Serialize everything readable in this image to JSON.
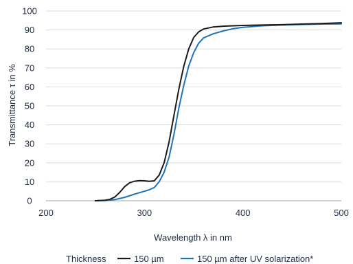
{
  "chart_data": {
    "type": "line",
    "xlabel": "Wavelength λ in nm",
    "ylabel": "Transmittance τ in %",
    "xlim": [
      200,
      500
    ],
    "ylim": [
      0,
      100
    ],
    "x_ticks": [
      200,
      300,
      400,
      500
    ],
    "y_ticks": [
      0,
      10,
      20,
      30,
      40,
      50,
      60,
      70,
      80,
      90,
      100
    ],
    "grid": {
      "horizontal": true,
      "vertical": false
    },
    "legend": {
      "position": "bottom",
      "title": "Thickness"
    },
    "series": [
      {
        "name": "150 µm",
        "color": "#1a1a1a",
        "points": [
          [
            250,
            0
          ],
          [
            260,
            0.3
          ],
          [
            265,
            0.8
          ],
          [
            270,
            2
          ],
          [
            275,
            4.5
          ],
          [
            280,
            7.5
          ],
          [
            285,
            9.5
          ],
          [
            290,
            10.3
          ],
          [
            295,
            10.6
          ],
          [
            300,
            10.5
          ],
          [
            305,
            10.2
          ],
          [
            310,
            10.5
          ],
          [
            315,
            13.5
          ],
          [
            320,
            20
          ],
          [
            325,
            31
          ],
          [
            330,
            45
          ],
          [
            335,
            59
          ],
          [
            340,
            71
          ],
          [
            345,
            80
          ],
          [
            350,
            86
          ],
          [
            355,
            89
          ],
          [
            360,
            90.5
          ],
          [
            370,
            91.6
          ],
          [
            380,
            92
          ],
          [
            390,
            92.2
          ],
          [
            400,
            92.4
          ],
          [
            420,
            92.6
          ],
          [
            440,
            92.8
          ],
          [
            460,
            93.1
          ],
          [
            480,
            93.4
          ],
          [
            500,
            93.8
          ]
        ]
      },
      {
        "name": "150 µm after UV solarization*",
        "color": "#1e73b8",
        "points": [
          [
            250,
            0
          ],
          [
            260,
            0.1
          ],
          [
            270,
            0.6
          ],
          [
            280,
            1.8
          ],
          [
            290,
            3.5
          ],
          [
            300,
            5.0
          ],
          [
            305,
            5.8
          ],
          [
            310,
            7.0
          ],
          [
            315,
            10
          ],
          [
            320,
            15
          ],
          [
            325,
            23
          ],
          [
            330,
            35
          ],
          [
            335,
            49
          ],
          [
            340,
            61
          ],
          [
            345,
            71
          ],
          [
            350,
            78
          ],
          [
            355,
            83
          ],
          [
            360,
            85.8
          ],
          [
            370,
            88
          ],
          [
            380,
            89.5
          ],
          [
            390,
            90.7
          ],
          [
            400,
            91.4
          ],
          [
            420,
            92.2
          ],
          [
            440,
            92.6
          ],
          [
            460,
            92.9
          ],
          [
            480,
            93.1
          ],
          [
            500,
            93.2
          ]
        ]
      }
    ]
  }
}
